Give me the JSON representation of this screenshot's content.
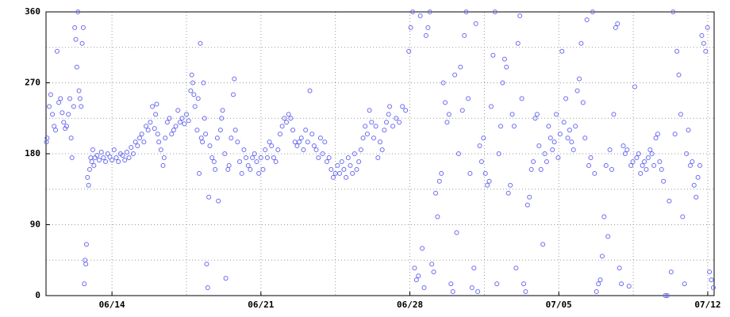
{
  "chart_data": {
    "type": "scatter",
    "series": [
      {
        "color": "#6b6bf0",
        "x": [
          10.92,
          10.95,
          11.05,
          11.12,
          11.2,
          11.28,
          11.35,
          11.42,
          11.5,
          11.58,
          11.66,
          11.73,
          11.8,
          11.87,
          11.95,
          12.02,
          12.08,
          12.12,
          12.2,
          12.25,
          12.3,
          12.35,
          12.4,
          12.45,
          12.5,
          12.55,
          12.6,
          12.65,
          12.7,
          12.73,
          12.77,
          12.8,
          12.85,
          12.9,
          12.95,
          13.0,
          13.05,
          13.1,
          13.15,
          13.2,
          13.3,
          13.4,
          13.5,
          13.6,
          13.7,
          13.8,
          13.9,
          14.0,
          14.1,
          14.2,
          14.3,
          14.4,
          14.5,
          14.6,
          14.7,
          14.8,
          14.9,
          15.0,
          15.1,
          15.2,
          15.3,
          15.4,
          15.5,
          15.6,
          15.7,
          15.8,
          15.9,
          16.0,
          16.05,
          16.1,
          16.15,
          16.2,
          16.3,
          16.4,
          16.45,
          16.5,
          16.6,
          16.7,
          16.8,
          16.9,
          17.0,
          17.1,
          17.2,
          17.3,
          17.4,
          17.5,
          17.6,
          17.7,
          17.75,
          17.8,
          17.85,
          17.9,
          18.0,
          18.05,
          18.1,
          18.15,
          18.2,
          18.25,
          18.3,
          18.35,
          18.4,
          18.45,
          18.5,
          18.55,
          18.6,
          18.7,
          18.8,
          18.85,
          18.95,
          19.0,
          19.1,
          19.15,
          19.2,
          19.3,
          19.35,
          19.45,
          19.5,
          19.6,
          19.7,
          19.75,
          19.8,
          19.9,
          20.0,
          20.1,
          20.2,
          20.3,
          20.4,
          20.5,
          20.6,
          20.7,
          20.8,
          20.9,
          21.0,
          21.1,
          21.2,
          21.3,
          21.4,
          21.5,
          21.6,
          21.7,
          21.8,
          21.9,
          22.0,
          22.1,
          22.2,
          22.3,
          22.4,
          22.5,
          22.6,
          22.7,
          22.8,
          22.9,
          23.0,
          23.1,
          23.2,
          23.3,
          23.4,
          23.5,
          23.6,
          23.7,
          23.8,
          23.9,
          24.0,
          24.1,
          24.2,
          24.3,
          24.4,
          24.5,
          24.6,
          24.7,
          24.8,
          24.9,
          25.0,
          25.1,
          25.2,
          25.3,
          25.4,
          25.5,
          25.6,
          25.7,
          25.8,
          25.9,
          26.0,
          26.1,
          26.2,
          26.3,
          26.4,
          26.5,
          26.6,
          26.7,
          26.8,
          26.9,
          27.0,
          27.05,
          27.2,
          27.35,
          27.5,
          27.65,
          27.8,
          27.95,
          28.04,
          28.13,
          28.22,
          28.31,
          28.4,
          28.49,
          28.58,
          28.67,
          28.76,
          28.85,
          28.94,
          29.03,
          29.12,
          29.21,
          29.3,
          29.39,
          29.48,
          29.57,
          29.66,
          29.75,
          29.84,
          29.93,
          30.02,
          30.11,
          30.2,
          30.29,
          30.38,
          30.47,
          30.56,
          30.65,
          30.74,
          30.83,
          30.92,
          31.01,
          31.1,
          31.19,
          31.28,
          31.37,
          31.46,
          31.55,
          31.64,
          31.73,
          31.82,
          31.91,
          32.0,
          32.09,
          32.18,
          32.27,
          32.36,
          32.45,
          32.54,
          32.63,
          32.72,
          32.81,
          32.9,
          32.99,
          33.08,
          33.17,
          33.26,
          33.35,
          33.44,
          33.53,
          33.62,
          33.71,
          33.8,
          33.89,
          33.98,
          34.07,
          34.16,
          34.25,
          34.34,
          34.43,
          34.52,
          34.61,
          34.7,
          34.79,
          34.88,
          34.97,
          35.06,
          35.15,
          35.24,
          35.33,
          35.42,
          35.51,
          35.6,
          35.69,
          35.78,
          35.87,
          35.96,
          36.05,
          36.14,
          36.23,
          36.32,
          36.41,
          36.5,
          36.59,
          36.68,
          36.77,
          36.86,
          36.95,
          37.04,
          37.13,
          37.22,
          37.31,
          37.4,
          37.49,
          37.58,
          37.67,
          37.76,
          37.85,
          37.94,
          38.03,
          38.12,
          38.21,
          38.3,
          38.39,
          38.48,
          38.57,
          38.66,
          38.75,
          38.84,
          38.93,
          39.02,
          39.11,
          39.2,
          39.29,
          39.38,
          39.47,
          39.56,
          39.65,
          39.74,
          39.83,
          39.92,
          40.01,
          40.1,
          40.19,
          40.28,
          40.37,
          40.46,
          40.55,
          40.64,
          40.73,
          40.82,
          40.91,
          41.0,
          41.09,
          41.18,
          41.27,
          41.36,
          41.45,
          41.54,
          41.63,
          41.72,
          41.81,
          41.9,
          41.99,
          42.08,
          42.17,
          42.26
        ],
        "values": [
          195,
          200,
          240,
          255,
          230,
          215,
          210,
          310,
          245,
          250,
          232,
          220,
          212,
          215,
          230,
          250,
          200,
          175,
          240,
          340,
          325,
          290,
          360,
          260,
          250,
          240,
          320,
          340,
          15,
          45,
          40,
          65,
          150,
          140,
          160,
          175,
          170,
          185,
          165,
          175,
          178,
          172,
          182,
          175,
          170,
          180,
          176,
          172,
          185,
          175,
          170,
          180,
          178,
          172,
          182,
          175,
          188,
          180,
          195,
          190,
          200,
          205,
          195,
          215,
          210,
          220,
          240,
          212,
          230,
          243,
          205,
          195,
          185,
          165,
          175,
          200,
          220,
          225,
          205,
          210,
          215,
          235,
          220,
          225,
          218,
          230,
          222,
          260,
          280,
          270,
          255,
          240,
          210,
          250,
          155,
          320,
          200,
          195,
          270,
          225,
          205,
          40,
          10,
          125,
          190,
          175,
          170,
          160,
          200,
          120,
          210,
          225,
          235,
          180,
          22,
          160,
          165,
          200,
          255,
          275,
          210,
          195,
          170,
          155,
          185,
          175,
          165,
          160,
          175,
          180,
          170,
          155,
          175,
          160,
          185,
          175,
          195,
          190,
          175,
          170,
          185,
          205,
          215,
          225,
          220,
          230,
          225,
          210,
          195,
          190,
          195,
          200,
          185,
          210,
          195,
          260,
          205,
          190,
          185,
          175,
          200,
          180,
          195,
          170,
          175,
          160,
          150,
          155,
          165,
          155,
          170,
          160,
          150,
          175,
          165,
          155,
          180,
          160,
          170,
          185,
          200,
          215,
          205,
          235,
          220,
          200,
          215,
          175,
          195,
          185,
          210,
          220,
          230,
          240,
          215,
          225,
          220,
          240,
          235,
          310,
          340,
          360,
          35,
          20,
          25,
          355,
          60,
          10,
          330,
          340,
          360,
          40,
          30,
          130,
          100,
          145,
          155,
          270,
          245,
          220,
          230,
          15,
          5,
          280,
          80,
          180,
          290,
          235,
          330,
          360,
          250,
          155,
          10,
          35,
          345,
          5,
          190,
          170,
          200,
          155,
          140,
          145,
          240,
          305,
          360,
          15,
          180,
          215,
          270,
          300,
          290,
          130,
          140,
          230,
          215,
          35,
          320,
          355,
          250,
          15,
          5,
          115,
          125,
          160,
          170,
          225,
          230,
          190,
          160,
          65,
          180,
          170,
          215,
          200,
          185,
          195,
          230,
          175,
          205,
          310,
          220,
          250,
          200,
          210,
          195,
          185,
          215,
          260,
          275,
          320,
          245,
          200,
          350,
          165,
          175,
          360,
          155,
          5,
          15,
          20,
          50,
          100,
          165,
          75,
          185,
          160,
          230,
          340,
          345,
          35,
          15,
          190,
          180,
          185,
          12,
          165,
          170,
          265,
          175,
          180,
          155,
          165,
          170,
          160,
          175,
          185,
          180,
          165,
          200,
          205,
          170,
          160,
          145,
          0,
          0,
          120,
          30,
          360,
          205,
          310,
          280,
          230,
          100,
          15,
          180,
          210,
          165,
          170,
          140,
          125,
          150,
          165,
          330,
          320,
          310,
          340,
          30,
          20,
          10
        ]
      }
    ],
    "xlim": [
      10.9,
      42.3
    ],
    "xticks": [
      {
        "value": 14,
        "label": "06/14"
      },
      {
        "value": 21,
        "label": "06/21"
      },
      {
        "value": 28,
        "label": "06/28"
      },
      {
        "value": 35,
        "label": "07/05"
      },
      {
        "value": 42,
        "label": "07/12"
      }
    ],
    "xgrid_minor": [
      17.5,
      24.5,
      31.5,
      38.5
    ],
    "ylim": [
      0,
      360
    ],
    "yticks": [
      0,
      90,
      180,
      270,
      360
    ],
    "ygrid_minor": [
      45,
      135,
      225,
      315
    ],
    "grid": true
  }
}
